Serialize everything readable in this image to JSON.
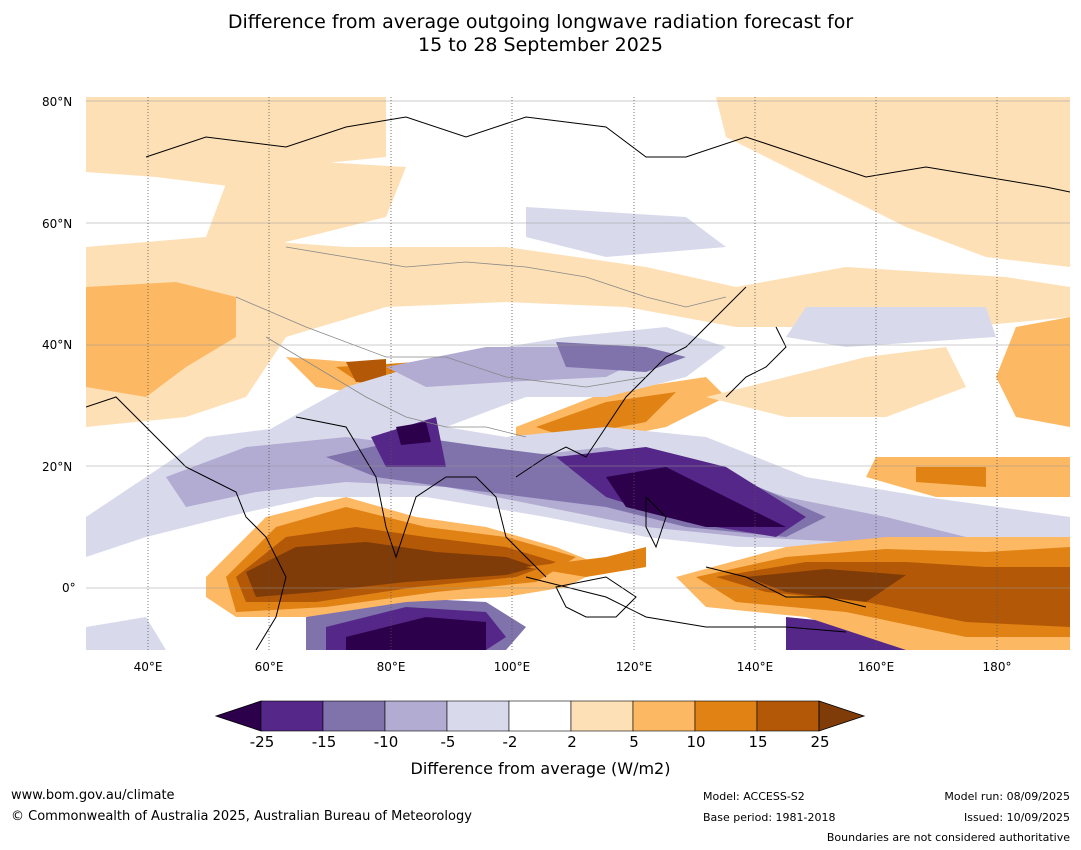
{
  "title_line1": "Difference from average outgoing longwave radiation forecast for",
  "title_line2": "15 to 28 September 2025",
  "lat_labels": [
    "80°N",
    "60°N",
    "40°N",
    "20°N",
    "0°"
  ],
  "lon_labels": [
    "40°E",
    "60°E",
    "80°E",
    "100°E",
    "120°E",
    "140°E",
    "160°E",
    "180°"
  ],
  "colorbar": {
    "labels": [
      "-25",
      "-15",
      "-10",
      "-5",
      "-2",
      "2",
      "5",
      "10",
      "15",
      "25"
    ],
    "colors": [
      "#2d004b",
      "#542788",
      "#8073ac",
      "#b2abd2",
      "#d8daeb",
      "#ffffff",
      "#fee0b6",
      "#fdb863",
      "#e08214",
      "#b35806",
      "#7f3b08"
    ],
    "title": "Difference from average (W/m2)"
  },
  "footer": {
    "website": "www.bom.gov.au/climate",
    "copyright": "© Commonwealth of Australia 2025, Australian Bureau of Meteorology",
    "model": "Model: ACCESS-S2",
    "base_period": "Base period: 1981-2018",
    "model_run": "Model run: 08/09/2025",
    "issued": "Issued: 10/09/2025",
    "disclaimer": "Boundaries are not considered authoritative"
  }
}
